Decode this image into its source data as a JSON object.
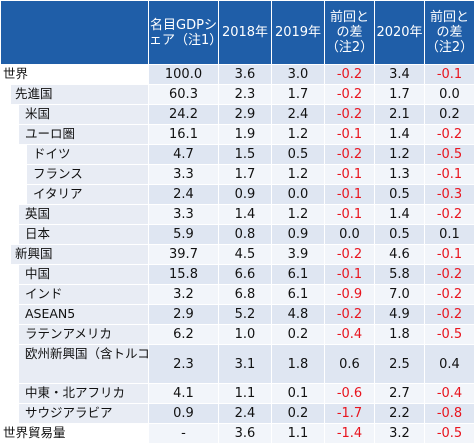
{
  "table": {
    "headers": [
      "",
      "名目GDPシェア（注1）",
      "2018年",
      "2019年",
      "前回との差（注2）",
      "2020年",
      "前回との差（注2）"
    ],
    "rows": [
      {
        "label": "世界",
        "level": 0,
        "values": [
          "100.0",
          "3.6",
          "3.0",
          "-0.2",
          "3.4",
          "-0.1"
        ]
      },
      {
        "label": "先進国",
        "level": 1,
        "values": [
          "60.3",
          "2.3",
          "1.7",
          "-0.2",
          "1.7",
          "0.0"
        ]
      },
      {
        "label": "米国",
        "level": 2,
        "values": [
          "24.2",
          "2.9",
          "2.4",
          "-0.2",
          "2.1",
          "0.2"
        ]
      },
      {
        "label": "ユーロ圏",
        "level": 2,
        "values": [
          "16.1",
          "1.9",
          "1.2",
          "-0.1",
          "1.4",
          "-0.2"
        ]
      },
      {
        "label": "ドイツ",
        "level": 3,
        "values": [
          "4.7",
          "1.5",
          "0.5",
          "-0.2",
          "1.2",
          "-0.5"
        ]
      },
      {
        "label": "フランス",
        "level": 3,
        "values": [
          "3.3",
          "1.7",
          "1.2",
          "-0.1",
          "1.3",
          "-0.1"
        ]
      },
      {
        "label": "イタリア",
        "level": 3,
        "values": [
          "2.4",
          "0.9",
          "0.0",
          "-0.1",
          "0.5",
          "-0.3"
        ]
      },
      {
        "label": "英国",
        "level": 2,
        "values": [
          "3.3",
          "1.4",
          "1.2",
          "-0.1",
          "1.4",
          "-0.2"
        ]
      },
      {
        "label": "日本",
        "level": 2,
        "values": [
          "5.9",
          "0.8",
          "0.9",
          "0.0",
          "0.5",
          "0.1"
        ]
      },
      {
        "label": "新興国",
        "level": 1,
        "values": [
          "39.7",
          "4.5",
          "3.9",
          "-0.2",
          "4.6",
          "-0.1"
        ]
      },
      {
        "label": "中国",
        "level": 2,
        "values": [
          "15.8",
          "6.6",
          "6.1",
          "-0.1",
          "5.8",
          "-0.2"
        ]
      },
      {
        "label": "インド",
        "level": 2,
        "values": [
          "3.2",
          "6.8",
          "6.1",
          "-0.9",
          "7.0",
          "-0.2"
        ]
      },
      {
        "label": "ASEAN5",
        "level": 2,
        "values": [
          "2.9",
          "5.2",
          "4.8",
          "-0.2",
          "4.9",
          "-0.2"
        ]
      },
      {
        "label": "ラテンアメリカ",
        "level": 2,
        "values": [
          "6.2",
          "1.0",
          "0.2",
          "-0.4",
          "1.8",
          "-0.5"
        ]
      },
      {
        "label": "欧州新興国（含トルコ）",
        "level": 2,
        "tall": true,
        "values": [
          "2.3",
          "3.1",
          "1.8",
          "0.6",
          "2.5",
          "0.4"
        ]
      },
      {
        "label": "中東・北アフリカ",
        "level": 2,
        "values": [
          "4.1",
          "1.1",
          "0.1",
          "-0.6",
          "2.7",
          "-0.4"
        ]
      },
      {
        "label": "サウジアラビア",
        "level": 2,
        "values": [
          "0.9",
          "2.4",
          "0.2",
          "-1.7",
          "2.2",
          "-0.8"
        ]
      },
      {
        "label": "世界貿易量",
        "level": 0,
        "values": [
          "-",
          "3.6",
          "1.1",
          "-1.4",
          "3.2",
          "-0.5"
        ]
      }
    ]
  },
  "colors": {
    "header_bg": "#1f5ea8",
    "header_text": "#ffffff",
    "row_band_a": "#dfe6f2",
    "row_band_b": "#f2f5fa",
    "negative_text": "#e8141e",
    "label_tint": "#e8ecf4"
  }
}
